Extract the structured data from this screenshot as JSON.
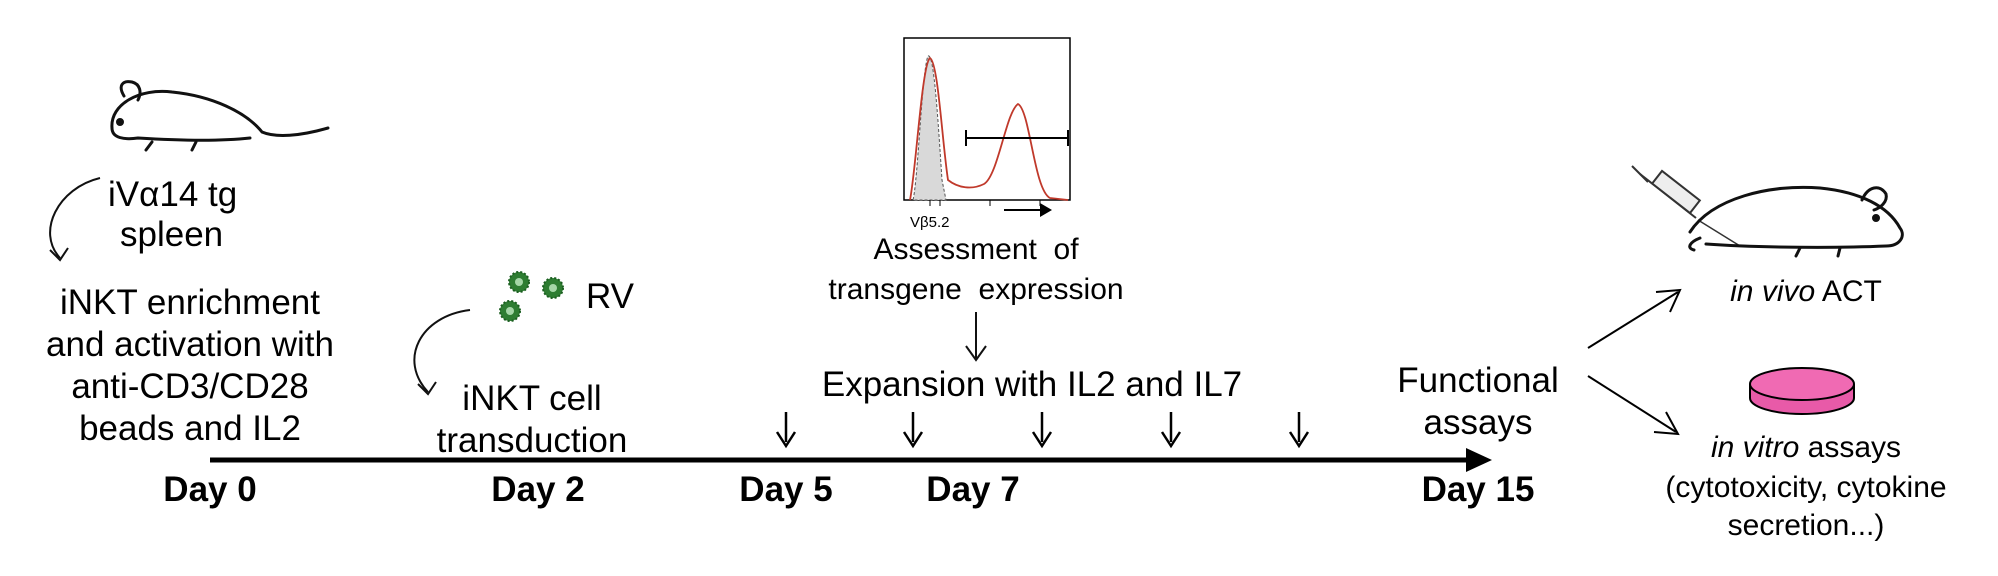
{
  "source_label": {
    "line1": "iVα14 tg",
    "line2": "spleen"
  },
  "steps": {
    "enrichment": [
      "iNKT enrichment",
      "and activation with",
      "anti-CD3/CD28",
      "beads and IL2"
    ],
    "virus_label": "RV",
    "transduction": [
      "iNKT cell",
      "transduction"
    ],
    "assessment": [
      "Assessment  of",
      "transgene  expression"
    ],
    "expansion": "Expansion with IL2 and IL7",
    "functional": [
      "Functional",
      "assays"
    ]
  },
  "histogram": {
    "x_axis_label": "Vβ5.2"
  },
  "timeline": {
    "days": [
      "Day 0",
      "Day 2",
      "Day 5",
      "Day 7",
      "Day 15"
    ]
  },
  "outcomes": {
    "in_vivo": {
      "italic": "in vivo",
      "rest": " ACT"
    },
    "in_vitro": {
      "italic": "in vitro",
      "rest": " assays",
      "line2": "(cytotoxicity, cytokine",
      "line3": "secretion...)"
    }
  },
  "colors": {
    "histogram_line": "#c0392b",
    "histogram_fill": "#d9d9d9",
    "virus": "#2e7d32",
    "dish_fill": "#e85aa8"
  },
  "icons": [
    "mouse-icon",
    "virus-icon",
    "syringe-icon",
    "petri-dish-icon"
  ]
}
